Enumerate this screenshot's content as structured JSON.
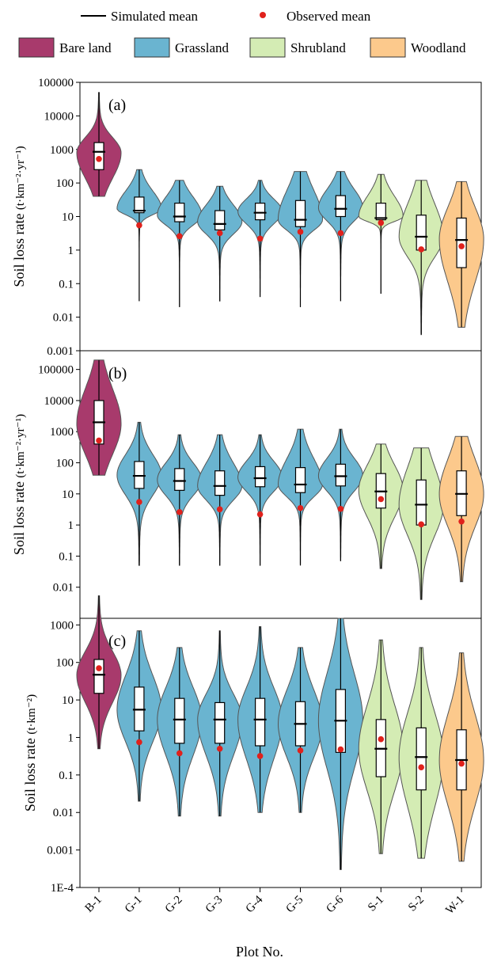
{
  "chart_data": {
    "type": "violin",
    "x_title": "Plot No.",
    "categories": [
      "B-1",
      "G-1",
      "G-2",
      "G-3",
      "G-4",
      "G-5",
      "G-6",
      "S-1",
      "S-2",
      "W-1"
    ],
    "category_group": [
      "Bare land",
      "Grassland",
      "Grassland",
      "Grassland",
      "Grassland",
      "Grassland",
      "Grassland",
      "Shrubland",
      "Shrubland",
      "Woodland"
    ],
    "legend": {
      "simulated_label": "Simulated mean",
      "observed_label": "Observed mean",
      "groups": [
        {
          "name": "Bare land",
          "color": "#a83a6c"
        },
        {
          "name": "Grassland",
          "color": "#6ab4d0"
        },
        {
          "name": "Shrubland",
          "color": "#d4ecb4"
        },
        {
          "name": "Woodland",
          "color": "#fcc98c"
        }
      ]
    },
    "colors": {
      "observed_mean": "#e0211c",
      "violin_outline": "#555555"
    },
    "y_scale": "log",
    "panels": [
      {
        "label": "(a)",
        "ylabel_main": "Soil loss rate",
        "ylabel_unit": "(t·km⁻²·yr⁻¹)",
        "ylim": [
          0.001,
          100000
        ],
        "yticks": [
          0.001,
          0.01,
          0.1,
          1,
          10,
          100,
          1000,
          10000,
          100000
        ],
        "ytick_labels": [
          "0.001",
          "0.01",
          "0.1",
          "1",
          "10",
          "100",
          "1000",
          "10000",
          "100000"
        ],
        "stats": [
          {
            "min": 40,
            "max": 50000,
            "q1": 250,
            "q3": 1600,
            "median": 800,
            "sim_mean": 850,
            "obs_mean": 520
          },
          {
            "min": 0.03,
            "max": 250,
            "q1": 13,
            "q3": 38,
            "median": 17,
            "sim_mean": 15,
            "obs_mean": 5.5
          },
          {
            "min": 0.02,
            "max": 120,
            "q1": 7,
            "q3": 25,
            "median": 11,
            "sim_mean": 10,
            "obs_mean": 2.6
          },
          {
            "min": 0.03,
            "max": 80,
            "q1": 4,
            "q3": 15,
            "median": 7,
            "sim_mean": 6,
            "obs_mean": 3.2
          },
          {
            "min": 0.04,
            "max": 120,
            "q1": 8,
            "q3": 25,
            "median": 14,
            "sim_mean": 13,
            "obs_mean": 2.2
          },
          {
            "min": 0.02,
            "max": 220,
            "q1": 5,
            "q3": 30,
            "median": 8,
            "sim_mean": 8,
            "obs_mean": 3.5
          },
          {
            "min": 0.03,
            "max": 220,
            "q1": 10,
            "q3": 42,
            "median": 18,
            "sim_mean": 17,
            "obs_mean": 3.2
          },
          {
            "min": 0.05,
            "max": 180,
            "q1": 8,
            "q3": 25,
            "median": 10,
            "sim_mean": 9,
            "obs_mean": 6.5
          },
          {
            "min": 0.003,
            "max": 120,
            "q1": 1,
            "q3": 11,
            "median": 2.5,
            "sim_mean": 2.5,
            "obs_mean": 1.05
          },
          {
            "min": 0.005,
            "max": 110,
            "q1": 0.3,
            "q3": 9,
            "median": 2.1,
            "sim_mean": 2,
            "obs_mean": 1.3
          }
        ]
      },
      {
        "label": "(b)",
        "ylabel_main": "Soil loss rate",
        "ylabel_unit": "(t·km⁻²·yr⁻¹)",
        "ylim": [
          0.001,
          400000
        ],
        "yticks": [
          0.01,
          0.1,
          1,
          10,
          100,
          1000,
          10000,
          100000
        ],
        "ytick_labels": [
          "0.01",
          "0.1",
          "1",
          "10",
          "100",
          "1000",
          "10000",
          "100000"
        ],
        "stats": [
          {
            "min": 40,
            "max": 200000,
            "q1": 400,
            "q3": 10000,
            "median": 1800,
            "sim_mean": 2000,
            "obs_mean": 520
          },
          {
            "min": 0.05,
            "max": 2000,
            "q1": 15,
            "q3": 110,
            "median": 40,
            "sim_mean": 38,
            "obs_mean": 5.5
          },
          {
            "min": 0.05,
            "max": 800,
            "q1": 13,
            "q3": 65,
            "median": 28,
            "sim_mean": 26,
            "obs_mean": 2.6
          },
          {
            "min": 0.05,
            "max": 800,
            "q1": 9,
            "q3": 55,
            "median": 18,
            "sim_mean": 18,
            "obs_mean": 3.2
          },
          {
            "min": 0.05,
            "max": 800,
            "q1": 17,
            "q3": 75,
            "median": 34,
            "sim_mean": 32,
            "obs_mean": 2.2
          },
          {
            "min": 0.05,
            "max": 1200,
            "q1": 11,
            "q3": 70,
            "median": 20,
            "sim_mean": 20,
            "obs_mean": 3.5
          },
          {
            "min": 0.07,
            "max": 1200,
            "q1": 18,
            "q3": 90,
            "median": 38,
            "sim_mean": 37,
            "obs_mean": 3.3
          },
          {
            "min": 0.04,
            "max": 400,
            "q1": 3.5,
            "q3": 45,
            "median": 13,
            "sim_mean": 12,
            "obs_mean": 6.8
          },
          {
            "min": 0.004,
            "max": 300,
            "q1": 1,
            "q3": 28,
            "median": 4.5,
            "sim_mean": 4.5,
            "obs_mean": 1.05
          },
          {
            "min": 0.015,
            "max": 700,
            "q1": 2,
            "q3": 55,
            "median": 10,
            "sim_mean": 10,
            "obs_mean": 1.3
          }
        ]
      },
      {
        "label": "(c)",
        "ylabel_main": "Soil loss rate",
        "ylabel_unit": "(t·km⁻²)",
        "ylim": [
          0.0001,
          1500
        ],
        "yticks": [
          0.0001,
          0.001,
          0.01,
          0.1,
          1,
          10,
          100,
          1000
        ],
        "ytick_labels": [
          "1E-4",
          "0.001",
          "0.01",
          "0.1",
          "1",
          "10",
          "100",
          "1000"
        ],
        "stats": [
          {
            "min": 0.5,
            "max": 6000,
            "q1": 15,
            "q3": 120,
            "median": 45,
            "sim_mean": 47,
            "obs_mean": 70
          },
          {
            "min": 0.02,
            "max": 700,
            "q1": 1.5,
            "q3": 22,
            "median": 5.5,
            "sim_mean": 5.5,
            "obs_mean": 0.75
          },
          {
            "min": 0.008,
            "max": 250,
            "q1": 0.7,
            "q3": 11,
            "median": 3,
            "sim_mean": 3,
            "obs_mean": 0.38
          },
          {
            "min": 0.008,
            "max": 700,
            "q1": 0.7,
            "q3": 8.5,
            "median": 3,
            "sim_mean": 3,
            "obs_mean": 0.5
          },
          {
            "min": 0.01,
            "max": 900,
            "q1": 0.6,
            "q3": 11,
            "median": 3,
            "sim_mean": 3,
            "obs_mean": 0.32
          },
          {
            "min": 0.01,
            "max": 250,
            "q1": 0.6,
            "q3": 9,
            "median": 2.3,
            "sim_mean": 2.3,
            "obs_mean": 0.45
          },
          {
            "min": 0.0003,
            "max": 1500,
            "q1": 0.4,
            "q3": 19,
            "median": 2.8,
            "sim_mean": 2.8,
            "obs_mean": 0.48
          },
          {
            "min": 0.0008,
            "max": 400,
            "q1": 0.09,
            "q3": 3,
            "median": 0.5,
            "sim_mean": 0.5,
            "obs_mean": 0.9
          },
          {
            "min": 0.0006,
            "max": 250,
            "q1": 0.04,
            "q3": 1.8,
            "median": 0.3,
            "sim_mean": 0.3,
            "obs_mean": 0.16
          },
          {
            "min": 0.0005,
            "max": 180,
            "q1": 0.04,
            "q3": 1.6,
            "median": 0.25,
            "sim_mean": 0.25,
            "obs_mean": 0.2
          }
        ]
      }
    ]
  }
}
